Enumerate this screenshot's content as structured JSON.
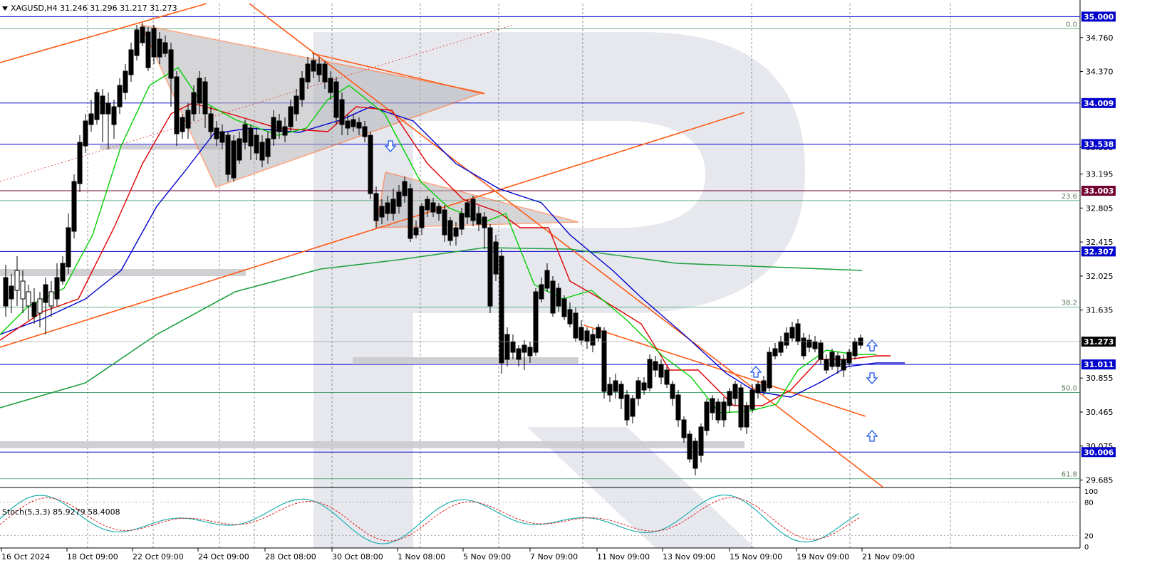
{
  "symbol_header": {
    "symbol": "XAGUSD,H4",
    "open": "31.246",
    "high": "31.296",
    "low": "31.217",
    "close": "31.273"
  },
  "stochastic_label": "Stoch(5,3,3) 85.9279 58.4008",
  "colors": {
    "bull_candle": "#ffffff",
    "bear_candle": "#000000",
    "ma_fast": "#00d000",
    "ma_mid": "#e00000",
    "ma_slow": "#0000d0",
    "ma_long": "#20a040",
    "trendline": "#ff5a14",
    "level_line": "#0000cc",
    "level_label_bg": "#0000cc",
    "current_price_bg": "#000000",
    "fib_line": "#339966",
    "stoch_main": "#20b0b0",
    "stoch_signal": "#e02020",
    "arrow": "#1a55e8",
    "watermark": "#dde0e8"
  },
  "chart_data": {
    "type": "candlestick",
    "price_axis_ticks": [
      "34.760",
      "34.370",
      "33.500",
      "33.195",
      "32.805",
      "32.415",
      "32.025",
      "31.635",
      "30.855",
      "30.465",
      "30.075",
      "29.685"
    ],
    "y_range": [
      29.6,
      35.15
    ],
    "level_labels": [
      {
        "price": 35.0,
        "label": "35.000"
      },
      {
        "price": 34.009,
        "label": "34.009"
      },
      {
        "price": 33.538,
        "label": "33.538"
      },
      {
        "price": 33.003,
        "label": "33.003"
      },
      {
        "price": 32.307,
        "label": "32.307"
      },
      {
        "price": 31.011,
        "label": "31.011"
      },
      {
        "price": 30.006,
        "label": "30.006"
      }
    ],
    "current_price": {
      "price": 31.273,
      "label": "31.273"
    },
    "fibonacci_levels": [
      {
        "label": "0.0",
        "price": 34.86
      },
      {
        "label": "23.6",
        "price": 32.89
      },
      {
        "label": "38.2",
        "price": 31.67
      },
      {
        "label": "50.0",
        "price": 30.69
      },
      {
        "label": "61.8",
        "price": 29.7
      }
    ],
    "time_axis_labels": [
      "16 Oct 2024",
      "18 Oct 09:00",
      "22 Oct 09:00",
      "24 Oct 09:00",
      "28 Oct 08:00",
      "30 Oct 08:00",
      "1 Nov 08:00",
      "5 Nov 09:00",
      "7 Nov 09:00",
      "11 Nov 09:00",
      "13 Nov 09:00",
      "15 Nov 09:00",
      "19 Nov 09:00",
      "21 Nov 09:00"
    ],
    "stochastic": {
      "name": "Stoch(5,3,3)",
      "main": 85.9279,
      "signal": 58.4008,
      "axis_ticks": [
        "100",
        "80",
        "20",
        "0"
      ],
      "range": [
        0,
        100
      ]
    }
  }
}
